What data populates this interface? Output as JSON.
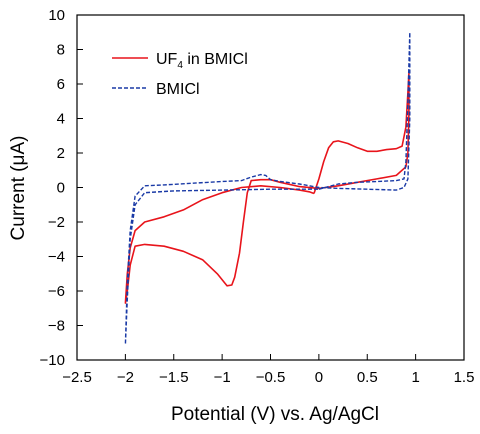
{
  "chart_data": {
    "type": "line",
    "xlabel": "Potential (V) vs. Ag/AgCl",
    "ylabel": "Current (μA)",
    "xlim": [
      -2.5,
      1.5
    ],
    "ylim": [
      -10,
      10
    ],
    "xticks": [
      -2.5,
      -2,
      -1.5,
      -1,
      -0.5,
      0,
      0.5,
      1,
      1.5
    ],
    "xtick_labels": [
      "−2.5",
      "−2",
      "−1.5",
      "−1",
      "−0.5",
      "0",
      "0.5",
      "1",
      "1.5"
    ],
    "yticks": [
      -10,
      -8,
      -6,
      -4,
      -2,
      0,
      2,
      4,
      6,
      8,
      10
    ],
    "ytick_labels": [
      "−10",
      "−8",
      "−6",
      "−4",
      "−2",
      "0",
      "2",
      "4",
      "6",
      "8",
      "10"
    ],
    "grid": false,
    "legend_position": "top-left",
    "series": [
      {
        "name": "UF",
        "name_subscript": "4",
        "name_rest": " in BMICl",
        "color": "#e8141b",
        "style": "solid",
        "points": [
          [
            -0.05,
            -0.35
          ],
          [
            0.0,
            0.5
          ],
          [
            0.05,
            1.5
          ],
          [
            0.1,
            2.3
          ],
          [
            0.15,
            2.65
          ],
          [
            0.2,
            2.7
          ],
          [
            0.3,
            2.55
          ],
          [
            0.4,
            2.3
          ],
          [
            0.5,
            2.1
          ],
          [
            0.6,
            2.1
          ],
          [
            0.7,
            2.2
          ],
          [
            0.8,
            2.25
          ],
          [
            0.86,
            2.4
          ],
          [
            0.9,
            3.5
          ],
          [
            0.92,
            5.5
          ],
          [
            0.93,
            6.6
          ],
          [
            0.93,
            4.2
          ],
          [
            0.92,
            2.0
          ],
          [
            0.9,
            1.2
          ],
          [
            0.8,
            0.7
          ],
          [
            0.6,
            0.5
          ],
          [
            0.4,
            0.3
          ],
          [
            0.2,
            0.1
          ],
          [
            0.0,
            -0.05
          ],
          [
            -0.2,
            0.05
          ],
          [
            -0.4,
            0.3
          ],
          [
            -0.5,
            0.45
          ],
          [
            -0.6,
            0.45
          ],
          [
            -0.7,
            0.4
          ],
          [
            -0.74,
            -0.3
          ],
          [
            -0.78,
            -2.0
          ],
          [
            -0.82,
            -3.8
          ],
          [
            -0.87,
            -5.2
          ],
          [
            -0.9,
            -5.65
          ],
          [
            -0.95,
            -5.7
          ],
          [
            -1.05,
            -5.0
          ],
          [
            -1.2,
            -4.2
          ],
          [
            -1.4,
            -3.7
          ],
          [
            -1.6,
            -3.4
          ],
          [
            -1.8,
            -3.3
          ],
          [
            -1.9,
            -3.4
          ],
          [
            -1.95,
            -4.5
          ],
          [
            -1.98,
            -6.0
          ],
          [
            -2.0,
            -6.7
          ],
          [
            -1.98,
            -5.0
          ],
          [
            -1.95,
            -3.5
          ],
          [
            -1.9,
            -2.5
          ],
          [
            -1.8,
            -2.0
          ],
          [
            -1.6,
            -1.7
          ],
          [
            -1.4,
            -1.3
          ],
          [
            -1.2,
            -0.7
          ],
          [
            -1.0,
            -0.3
          ],
          [
            -0.8,
            0.0
          ],
          [
            -0.6,
            0.1
          ],
          [
            -0.4,
            0.0
          ],
          [
            -0.2,
            -0.15
          ],
          [
            -0.1,
            -0.25
          ],
          [
            -0.05,
            -0.35
          ]
        ]
      },
      {
        "name": "BMICl",
        "color": "#1a3aa6",
        "style": "dashed",
        "points": [
          [
            0.0,
            -0.1
          ],
          [
            0.2,
            0.2
          ],
          [
            0.4,
            0.3
          ],
          [
            0.6,
            0.35
          ],
          [
            0.8,
            0.4
          ],
          [
            0.88,
            0.5
          ],
          [
            0.9,
            1.5
          ],
          [
            0.92,
            5.0
          ],
          [
            0.94,
            9.0
          ],
          [
            0.94,
            4.0
          ],
          [
            0.92,
            0.5
          ],
          [
            0.88,
            0.0
          ],
          [
            0.8,
            -0.15
          ],
          [
            0.5,
            -0.1
          ],
          [
            0.2,
            -0.05
          ],
          [
            0.0,
            0.0
          ],
          [
            -0.2,
            0.2
          ],
          [
            -0.4,
            0.35
          ],
          [
            -0.5,
            0.45
          ],
          [
            -0.55,
            0.7
          ],
          [
            -0.6,
            0.75
          ],
          [
            -0.7,
            0.6
          ],
          [
            -0.8,
            0.4
          ],
          [
            -1.0,
            0.35
          ],
          [
            -1.3,
            0.25
          ],
          [
            -1.6,
            0.15
          ],
          [
            -1.8,
            0.1
          ],
          [
            -1.9,
            -0.5
          ],
          [
            -1.95,
            -2.5
          ],
          [
            -1.98,
            -5.5
          ],
          [
            -2.0,
            -9.1
          ],
          [
            -1.98,
            -6.5
          ],
          [
            -1.95,
            -3.0
          ],
          [
            -1.9,
            -1.0
          ],
          [
            -1.8,
            -0.3
          ],
          [
            -1.5,
            -0.2
          ],
          [
            -1.0,
            -0.15
          ],
          [
            -0.5,
            -0.1
          ],
          [
            0.0,
            -0.1
          ]
        ]
      }
    ]
  }
}
